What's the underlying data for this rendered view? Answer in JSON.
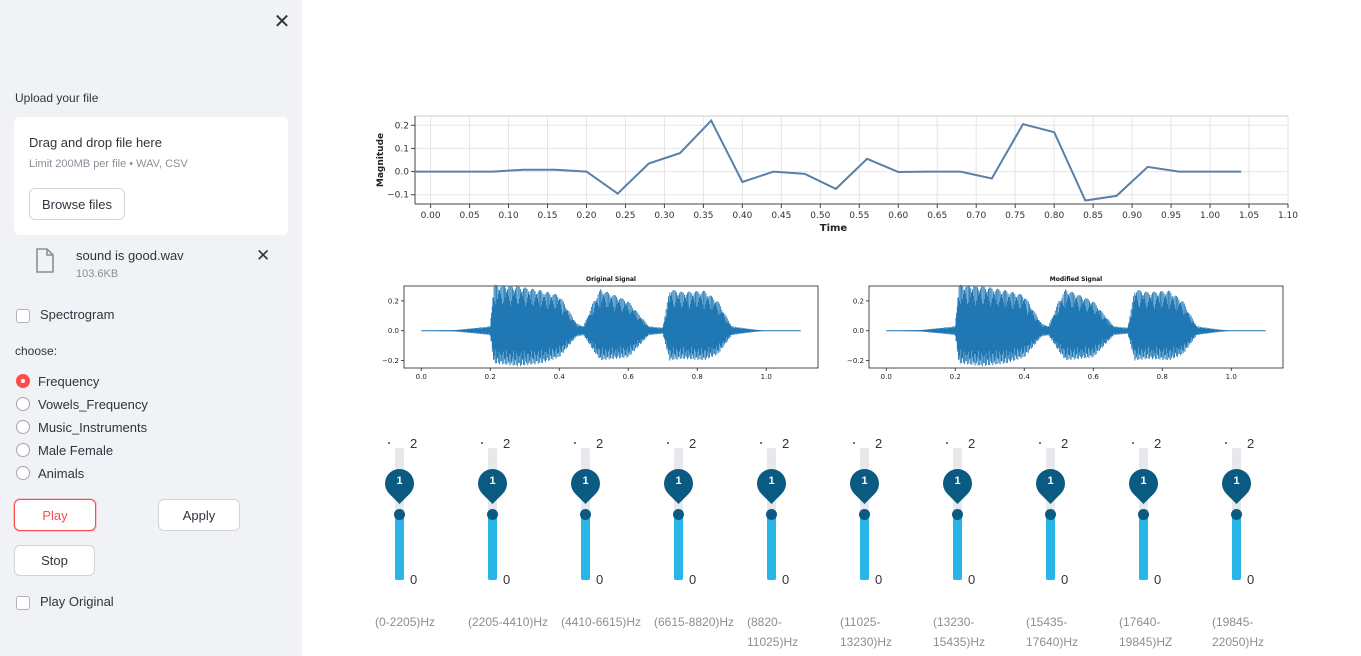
{
  "sidebar": {
    "upload_label": "Upload your file",
    "drop_title": "Drag and drop file here",
    "drop_limit": "Limit 200MB per file • WAV, CSV",
    "browse_label": "Browse files",
    "file_name": "sound is good.wav",
    "file_size": "103.6KB",
    "spectrogram_label": "Spectrogram",
    "choose_label": "choose:",
    "options": [
      "Frequency",
      "Vowels_Frequency",
      "Music_Instruments",
      "Male Female",
      "Animals"
    ],
    "selected_option": "Frequency",
    "play_label": "Play",
    "apply_label": "Apply",
    "stop_label": "Stop",
    "play_original_label": "Play Original"
  },
  "chart_data": [
    {
      "type": "line",
      "title": "",
      "xlabel": "Time",
      "ylabel": "Magnitude",
      "xlim": [
        -0.02,
        1.1
      ],
      "ylim": [
        -0.14,
        0.24
      ],
      "xticks": [
        0.0,
        0.05,
        0.1,
        0.15,
        0.2,
        0.25,
        0.3,
        0.35,
        0.4,
        0.45,
        0.5,
        0.55,
        0.6,
        0.65,
        0.7,
        0.75,
        0.8,
        0.85,
        0.9,
        0.95,
        1.0,
        1.05,
        1.1
      ],
      "xtick_labels": [
        "0.00",
        "0.05",
        "0.10",
        "0.15",
        "0.20",
        "0.25",
        "0.30",
        "0.35",
        "0.40",
        "0.45",
        "0.50",
        "0.55",
        "0.60",
        "0.65",
        "0.70",
        "0.75",
        "0.80",
        "0.85",
        "0.90",
        "0.95",
        "1.00",
        "1.05",
        "1.10"
      ],
      "yticks": [
        -0.1,
        0.0,
        0.1,
        0.2
      ],
      "ytick_labels": [
        "−0.1",
        "0.0",
        "0.1",
        "0.2"
      ],
      "grid": true,
      "color": "#5a7fa8",
      "x": [
        -0.02,
        0.08,
        0.12,
        0.16,
        0.2,
        0.24,
        0.28,
        0.32,
        0.36,
        0.4,
        0.44,
        0.48,
        0.52,
        0.56,
        0.6,
        0.64,
        0.68,
        0.72,
        0.76,
        0.8,
        0.84,
        0.88,
        0.92,
        0.96,
        1.0,
        1.04
      ],
      "y": [
        0.0,
        0.0,
        0.008,
        0.008,
        0.0,
        -0.095,
        0.035,
        0.08,
        0.22,
        -0.045,
        0.0,
        -0.01,
        -0.075,
        0.055,
        -0.002,
        0.0,
        0.0,
        -0.03,
        0.205,
        0.17,
        -0.125,
        -0.105,
        0.02,
        0.0,
        0.0,
        0.0
      ]
    },
    {
      "type": "line",
      "title": "Original Signal",
      "xlim": [
        -0.05,
        1.15
      ],
      "ylim": [
        -0.25,
        0.3
      ],
      "xticks": [
        0.0,
        0.2,
        0.4,
        0.6,
        0.8,
        1.0
      ],
      "xtick_labels": [
        "0.0",
        "0.2",
        "0.4",
        "0.6",
        "0.8",
        "1.0"
      ],
      "yticks": [
        -0.2,
        0.0,
        0.2
      ],
      "ytick_labels": [
        "−0.2",
        "0.0",
        "0.2"
      ],
      "color": "#1f77b4",
      "envelope": {
        "t": [
          0.0,
          0.1,
          0.2,
          0.21,
          0.28,
          0.35,
          0.4,
          0.45,
          0.47,
          0.5,
          0.52,
          0.6,
          0.66,
          0.7,
          0.72,
          0.76,
          0.82,
          0.86,
          0.9,
          0.96,
          1.0,
          1.1
        ],
        "pos": [
          0.0,
          0.005,
          0.03,
          0.31,
          0.3,
          0.27,
          0.24,
          0.05,
          0.03,
          0.2,
          0.28,
          0.2,
          0.03,
          0.02,
          0.28,
          0.26,
          0.27,
          0.2,
          0.03,
          0.01,
          0.0,
          0.0
        ],
        "neg": [
          0.0,
          0.005,
          0.03,
          0.22,
          0.24,
          0.22,
          0.18,
          0.04,
          0.03,
          0.14,
          0.2,
          0.18,
          0.03,
          0.02,
          0.2,
          0.19,
          0.2,
          0.16,
          0.03,
          0.01,
          0.0,
          0.0
        ]
      }
    },
    {
      "type": "line",
      "title": "Modified Signal",
      "xlim": [
        -0.05,
        1.15
      ],
      "ylim": [
        -0.25,
        0.3
      ],
      "xticks": [
        0.0,
        0.2,
        0.4,
        0.6,
        0.8,
        1.0
      ],
      "xtick_labels": [
        "0.0",
        "0.2",
        "0.4",
        "0.6",
        "0.8",
        "1.0"
      ],
      "yticks": [
        -0.2,
        0.0,
        0.2
      ],
      "ytick_labels": [
        "−0.2",
        "0.0",
        "0.2"
      ],
      "color": "#1f77b4",
      "envelope": {
        "t": [
          0.0,
          0.1,
          0.2,
          0.21,
          0.28,
          0.35,
          0.4,
          0.45,
          0.47,
          0.5,
          0.52,
          0.6,
          0.66,
          0.7,
          0.72,
          0.76,
          0.82,
          0.86,
          0.9,
          0.96,
          1.0,
          1.1
        ],
        "pos": [
          0.0,
          0.005,
          0.03,
          0.31,
          0.3,
          0.27,
          0.24,
          0.05,
          0.03,
          0.2,
          0.28,
          0.2,
          0.03,
          0.02,
          0.28,
          0.26,
          0.27,
          0.2,
          0.03,
          0.01,
          0.0,
          0.0
        ],
        "neg": [
          0.0,
          0.005,
          0.03,
          0.22,
          0.24,
          0.22,
          0.18,
          0.04,
          0.03,
          0.14,
          0.2,
          0.18,
          0.03,
          0.02,
          0.2,
          0.19,
          0.2,
          0.16,
          0.03,
          0.01,
          0.0,
          0.0
        ]
      }
    }
  ],
  "sliders": {
    "min_label": "0",
    "max_label": "2",
    "min": 0,
    "max": 2,
    "items": [
      {
        "value": 1,
        "band": "(0-2205)Hz"
      },
      {
        "value": 1,
        "band": "(2205-4410)Hz"
      },
      {
        "value": 1,
        "band": "(4410-6615)Hz"
      },
      {
        "value": 1,
        "band": "(6615-8820)Hz"
      },
      {
        "value": 1,
        "band": "(8820-11025)Hz"
      },
      {
        "value": 1,
        "band": "(11025-13230)Hz"
      },
      {
        "value": 1,
        "band": "(13230-15435)Hz"
      },
      {
        "value": 1,
        "band": "(15435-17640)Hz"
      },
      {
        "value": 1,
        "band": "(17640-19845)HZ"
      },
      {
        "value": 1,
        "band": "(19845-22050)Hz"
      }
    ]
  }
}
